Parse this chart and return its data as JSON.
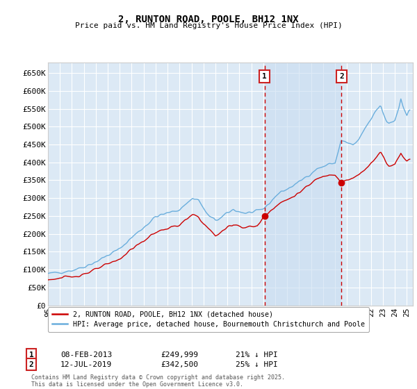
{
  "title": "2, RUNTON ROAD, POOLE, BH12 1NX",
  "subtitle": "Price paid vs. HM Land Registry's House Price Index (HPI)",
  "ylim": [
    0,
    680000
  ],
  "xlim_start": 1995.0,
  "xlim_end": 2025.5,
  "transaction1_date": "08-FEB-2013",
  "transaction1_price": 249999,
  "transaction1_hpi_diff": "21% ↓ HPI",
  "transaction1_x": 2013.1,
  "transaction2_date": "12-JUL-2019",
  "transaction2_price": 342500,
  "transaction2_hpi_diff": "25% ↓ HPI",
  "transaction2_x": 2019.54,
  "legend_line1": "2, RUNTON ROAD, POOLE, BH12 1NX (detached house)",
  "legend_line2": "HPI: Average price, detached house, Bournemouth Christchurch and Poole",
  "footer": "Contains HM Land Registry data © Crown copyright and database right 2025.\nThis data is licensed under the Open Government Licence v3.0.",
  "plot_bg": "#dce9f5",
  "grid_color": "#ffffff",
  "hpi_color": "#6aaedd",
  "price_color": "#cc0000",
  "dashed_line_color": "#cc0000",
  "ytick_vals": [
    0,
    50000,
    100000,
    150000,
    200000,
    250000,
    300000,
    350000,
    400000,
    450000,
    500000,
    550000,
    600000,
    650000
  ],
  "ytick_labels": [
    "£0",
    "£50K",
    "£100K",
    "£150K",
    "£200K",
    "£250K",
    "£300K",
    "£350K",
    "£400K",
    "£450K",
    "£500K",
    "£550K",
    "£600K",
    "£650K"
  ],
  "xtick_labels": [
    "95",
    "96",
    "97",
    "98",
    "99",
    "00",
    "01",
    "02",
    "03",
    "04",
    "05",
    "06",
    "07",
    "08",
    "09",
    "10",
    "11",
    "12",
    "13",
    "14",
    "15",
    "16",
    "17",
    "18",
    "19",
    "20",
    "21",
    "22",
    "23",
    "24",
    "25"
  ]
}
